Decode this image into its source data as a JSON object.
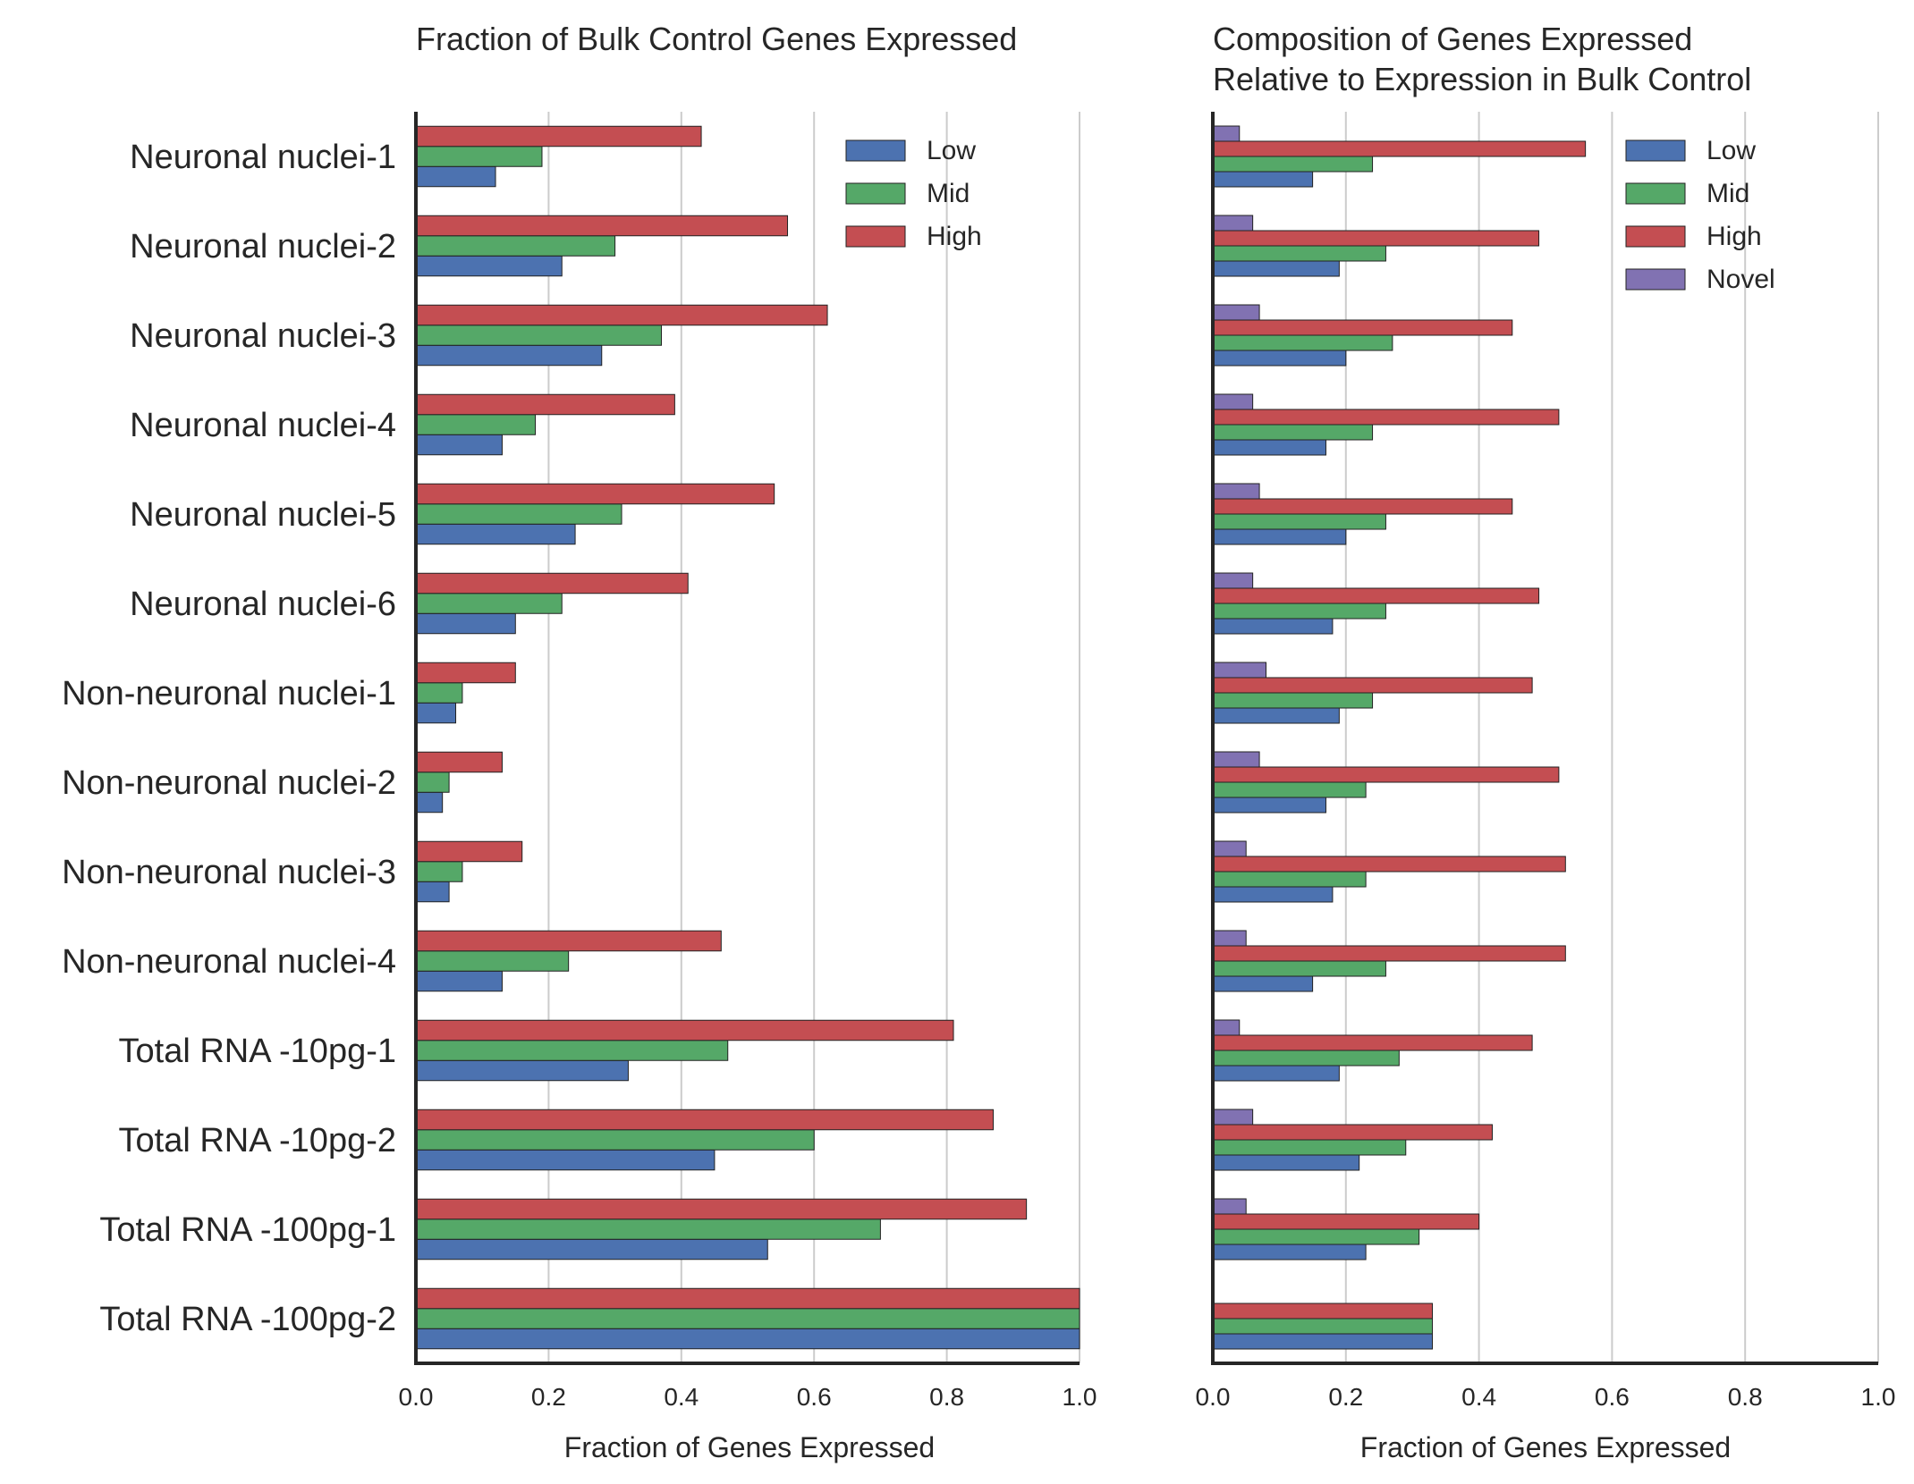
{
  "categories": [
    "Neuronal nuclei-1",
    "Neuronal nuclei-2",
    "Neuronal nuclei-3",
    "Neuronal nuclei-4",
    "Neuronal nuclei-5",
    "Neuronal nuclei-6",
    "Non-neuronal nuclei-1",
    "Non-neuronal nuclei-2",
    "Non-neuronal nuclei-3",
    "Non-neuronal nuclei-4",
    "Total RNA -10pg-1",
    "Total RNA -10pg-2",
    "Total RNA -100pg-1",
    "Total RNA -100pg-2"
  ],
  "colors": {
    "Low": "#4c72b0",
    "Mid": "#55a868",
    "High": "#c44e52",
    "Novel": "#8172b2"
  },
  "chart_data": [
    {
      "type": "bar",
      "orientation": "horizontal",
      "title": "Fraction of Bulk Control Genes Expressed",
      "xlabel": "Fraction of Genes Expressed",
      "xlim": [
        0,
        1.0
      ],
      "xticks": [
        "0.0",
        "0.2",
        "0.4",
        "0.6",
        "0.8",
        "1.0"
      ],
      "grid": "vertical",
      "legend": {
        "placement": "top-right",
        "entries": [
          "Low",
          "Mid",
          "High"
        ]
      },
      "series": [
        {
          "name": "Low",
          "values": [
            0.12,
            0.22,
            0.28,
            0.13,
            0.24,
            0.15,
            0.06,
            0.04,
            0.05,
            0.13,
            0.32,
            0.45,
            0.53,
            1.0
          ]
        },
        {
          "name": "Mid",
          "values": [
            0.19,
            0.3,
            0.37,
            0.18,
            0.31,
            0.22,
            0.07,
            0.05,
            0.07,
            0.23,
            0.47,
            0.6,
            0.7,
            1.0
          ]
        },
        {
          "name": "High",
          "values": [
            0.43,
            0.56,
            0.62,
            0.39,
            0.54,
            0.41,
            0.15,
            0.13,
            0.16,
            0.46,
            0.81,
            0.87,
            0.92,
            1.0
          ]
        }
      ]
    },
    {
      "type": "bar",
      "orientation": "horizontal",
      "title": "Composition of Genes Expressed",
      "subtitle": "Relative to Expression in Bulk Control",
      "xlabel": "Fraction of Genes Expressed",
      "xlim": [
        0,
        1.0
      ],
      "xticks": [
        "0.0",
        "0.2",
        "0.4",
        "0.6",
        "0.8",
        "1.0"
      ],
      "grid": "vertical",
      "legend": {
        "placement": "top-right",
        "entries": [
          "Low",
          "Mid",
          "High",
          "Novel"
        ]
      },
      "series": [
        {
          "name": "Low",
          "values": [
            0.15,
            0.19,
            0.2,
            0.17,
            0.2,
            0.18,
            0.19,
            0.17,
            0.18,
            0.15,
            0.19,
            0.22,
            0.23,
            0.33
          ]
        },
        {
          "name": "Mid",
          "values": [
            0.24,
            0.26,
            0.27,
            0.24,
            0.26,
            0.26,
            0.24,
            0.23,
            0.23,
            0.26,
            0.28,
            0.29,
            0.31,
            0.33
          ]
        },
        {
          "name": "High",
          "values": [
            0.56,
            0.49,
            0.45,
            0.52,
            0.45,
            0.49,
            0.48,
            0.52,
            0.53,
            0.53,
            0.48,
            0.42,
            0.4,
            0.33
          ]
        },
        {
          "name": "Novel",
          "values": [
            0.04,
            0.06,
            0.07,
            0.06,
            0.07,
            0.06,
            0.08,
            0.07,
            0.05,
            0.05,
            0.04,
            0.06,
            0.05,
            0.0
          ]
        }
      ]
    }
  ]
}
